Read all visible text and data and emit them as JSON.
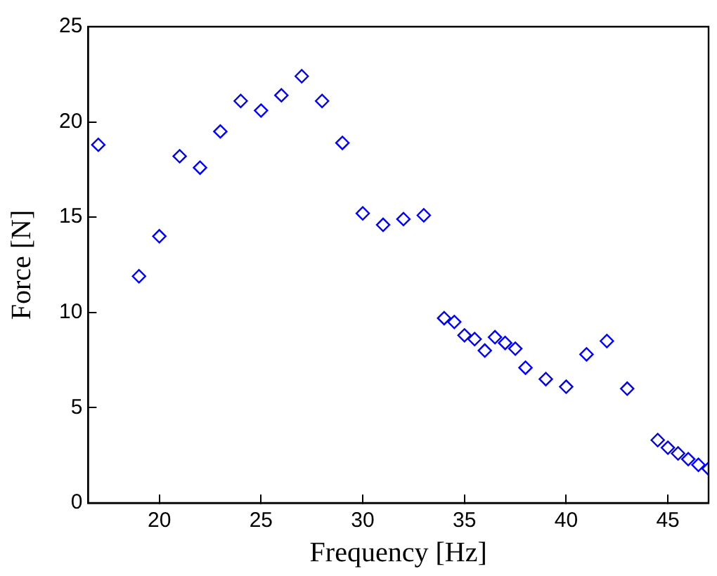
{
  "chart_data": {
    "type": "scatter",
    "xlabel": "Frequency [Hz]",
    "ylabel": "Force [N]",
    "x": [
      17,
      19,
      20,
      21,
      22,
      23,
      24,
      25,
      26,
      27,
      28,
      29,
      30,
      31,
      32,
      33,
      34,
      34.5,
      35,
      35.5,
      36,
      36.5,
      37,
      37.5,
      38,
      39,
      40,
      41,
      42,
      43,
      44.5,
      45,
      45.5,
      46,
      46.5,
      47
    ],
    "series": [
      {
        "color": "#0000ff",
        "values": [
          18.8,
          11.9,
          14.0,
          18.2,
          17.6,
          19.5,
          21.1,
          20.6,
          21.4,
          22.4,
          21.1,
          18.9,
          15.2,
          14.6,
          14.9,
          15.1,
          9.7,
          9.5,
          8.8,
          8.6,
          8.0,
          8.7,
          8.4,
          8.1,
          7.1,
          6.5,
          6.1,
          7.8,
          8.5,
          6.0,
          3.3,
          2.9,
          2.6,
          2.3,
          2.0,
          1.8
        ]
      }
    ],
    "xlim": [
      16.5,
      47
    ],
    "xticks": [
      20,
      25,
      30,
      35,
      40,
      45
    ],
    "ylim": [
      0,
      25
    ],
    "yticks": [
      0,
      5,
      10,
      15,
      20,
      25
    ],
    "marker": "diamond",
    "grid": false,
    "legend": false
  }
}
